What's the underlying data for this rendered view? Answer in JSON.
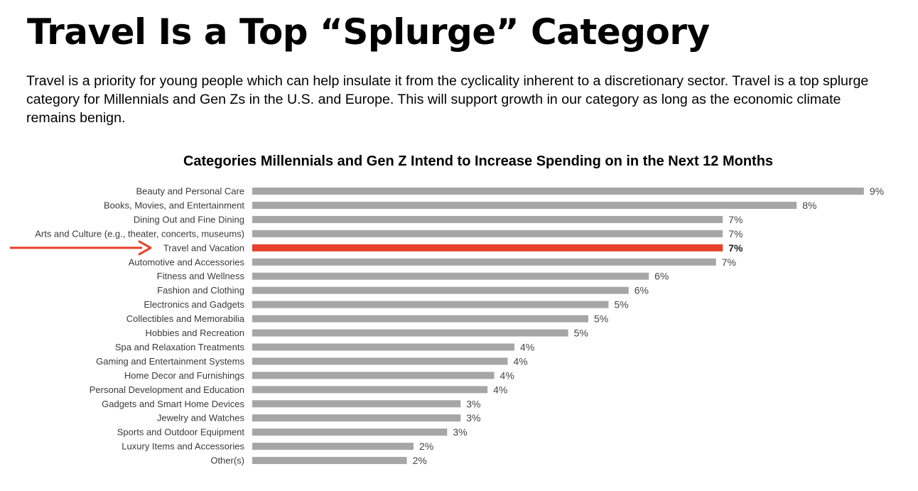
{
  "title": "Travel Is a Top “Splurge” Category",
  "intro": "Travel is a priority for young people which can help insulate it from the cyclicality inherent to a discretionary sector. Travel is a top splurge category for Millennials and Gen Zs in the U.S. and Europe. This will support growth in our category as long as the economic climate remains benign.",
  "colors": {
    "bar": "#a6a6a6",
    "highlight": "#e8402a",
    "arrow": "#e8402a"
  },
  "chart_data": {
    "type": "bar",
    "orientation": "horizontal",
    "title": "Categories Millennials and Gen Z Intend to Increase Spending on in the Next 12 Months",
    "xlabel": "",
    "ylabel": "",
    "xlim": [
      0,
      9.5
    ],
    "grid": false,
    "highlighted_category": "Travel and Vacation",
    "categories": [
      "Beauty and Personal Care",
      "Books, Movies, and Entertainment",
      "Dining Out and Fine Dining",
      "Arts and Culture (e.g., theater, concerts, museums)",
      "Travel and Vacation",
      "Automotive and Accessories",
      "Fitness and Wellness",
      "Fashion and Clothing",
      "Electronics and Gadgets",
      "Collectibles and Memorabilia",
      "Hobbies and Recreation",
      "Spa and Relaxation Treatments",
      "Gaming and Entertainment Systems",
      "Home Decor and Furnishings",
      "Personal Development and Education",
      "Gadgets and Smart Home Devices",
      "Jewelry and Watches",
      "Sports and Outdoor Equipment",
      "Luxury Items and Accessories",
      "Other(s)"
    ],
    "values": [
      9.1,
      8.1,
      7.0,
      7.0,
      7.0,
      6.9,
      5.9,
      5.6,
      5.3,
      5.0,
      4.7,
      3.9,
      3.8,
      3.6,
      3.5,
      3.1,
      3.1,
      2.9,
      2.4,
      2.3
    ],
    "data_labels": [
      "9%",
      "8%",
      "7%",
      "7%",
      "7%",
      "7%",
      "6%",
      "6%",
      "5%",
      "5%",
      "5%",
      "4%",
      "4%",
      "4%",
      "4%",
      "3%",
      "3%",
      "3%",
      "2%",
      "2%"
    ]
  }
}
